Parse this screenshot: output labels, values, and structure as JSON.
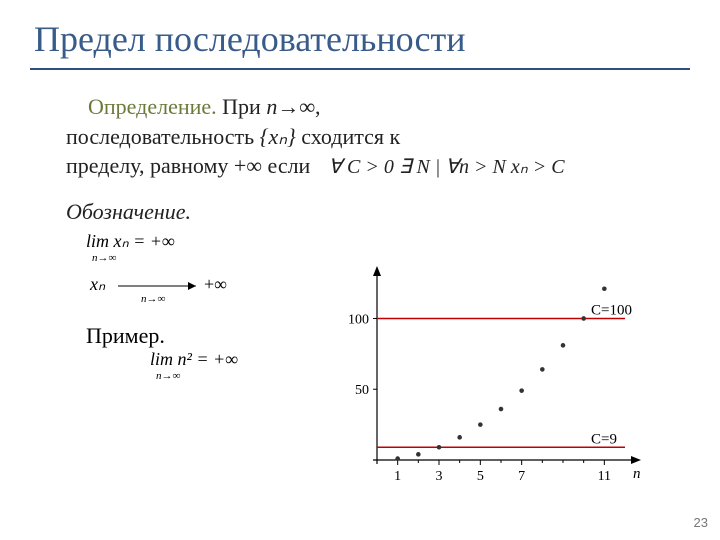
{
  "title": "Предел последовательности",
  "definition": {
    "head": "Определение.",
    "part1": "При ",
    "expr_n": "n→∞",
    "part2": ",",
    "line2a": "последовательность ",
    "seq": "{xₙ}",
    "line2b": "   сходится  к",
    "line3": "пределу, равному +∞ если"
  },
  "condition": "∀ C > 0  ∃ N   |   ∀n > N  xₙ > C",
  "notation_label": "Обозначение.",
  "formulas": {
    "lim1_top": "lim xₙ = +∞",
    "lim1_sub": "n→∞",
    "arrow_left": "xₙ",
    "arrow_sub": "n→∞",
    "arrow_right": "+∞"
  },
  "example_label": "Пример.",
  "example_formula_top": "lim n² = +∞",
  "example_formula_sub": "n→∞",
  "chart": {
    "y_ticks": [
      {
        "v": 100,
        "label": "100"
      },
      {
        "v": 50,
        "label": "50"
      }
    ],
    "x_ticks": [
      {
        "v": 1,
        "label": "1"
      },
      {
        "v": 3,
        "label": "3"
      },
      {
        "v": 5,
        "label": "5"
      },
      {
        "v": 7,
        "label": "7"
      },
      {
        "v": 11,
        "label": "11"
      }
    ],
    "x_minor": [
      2,
      4,
      6,
      8,
      9,
      10
    ],
    "points_x": [
      1,
      2,
      3,
      4,
      5,
      6,
      7,
      8,
      9,
      10,
      11
    ],
    "max_y": 121,
    "line1": {
      "y": 100,
      "label": "C=100",
      "color": "#c00000"
    },
    "line2": {
      "y": 9,
      "label": "C=9",
      "color": "#c00000"
    },
    "axis_color": "#000000",
    "point_color": "#333333",
    "n_label": "n",
    "plot": {
      "x_max": 12,
      "y_max": 130
    }
  },
  "page_number": "23"
}
